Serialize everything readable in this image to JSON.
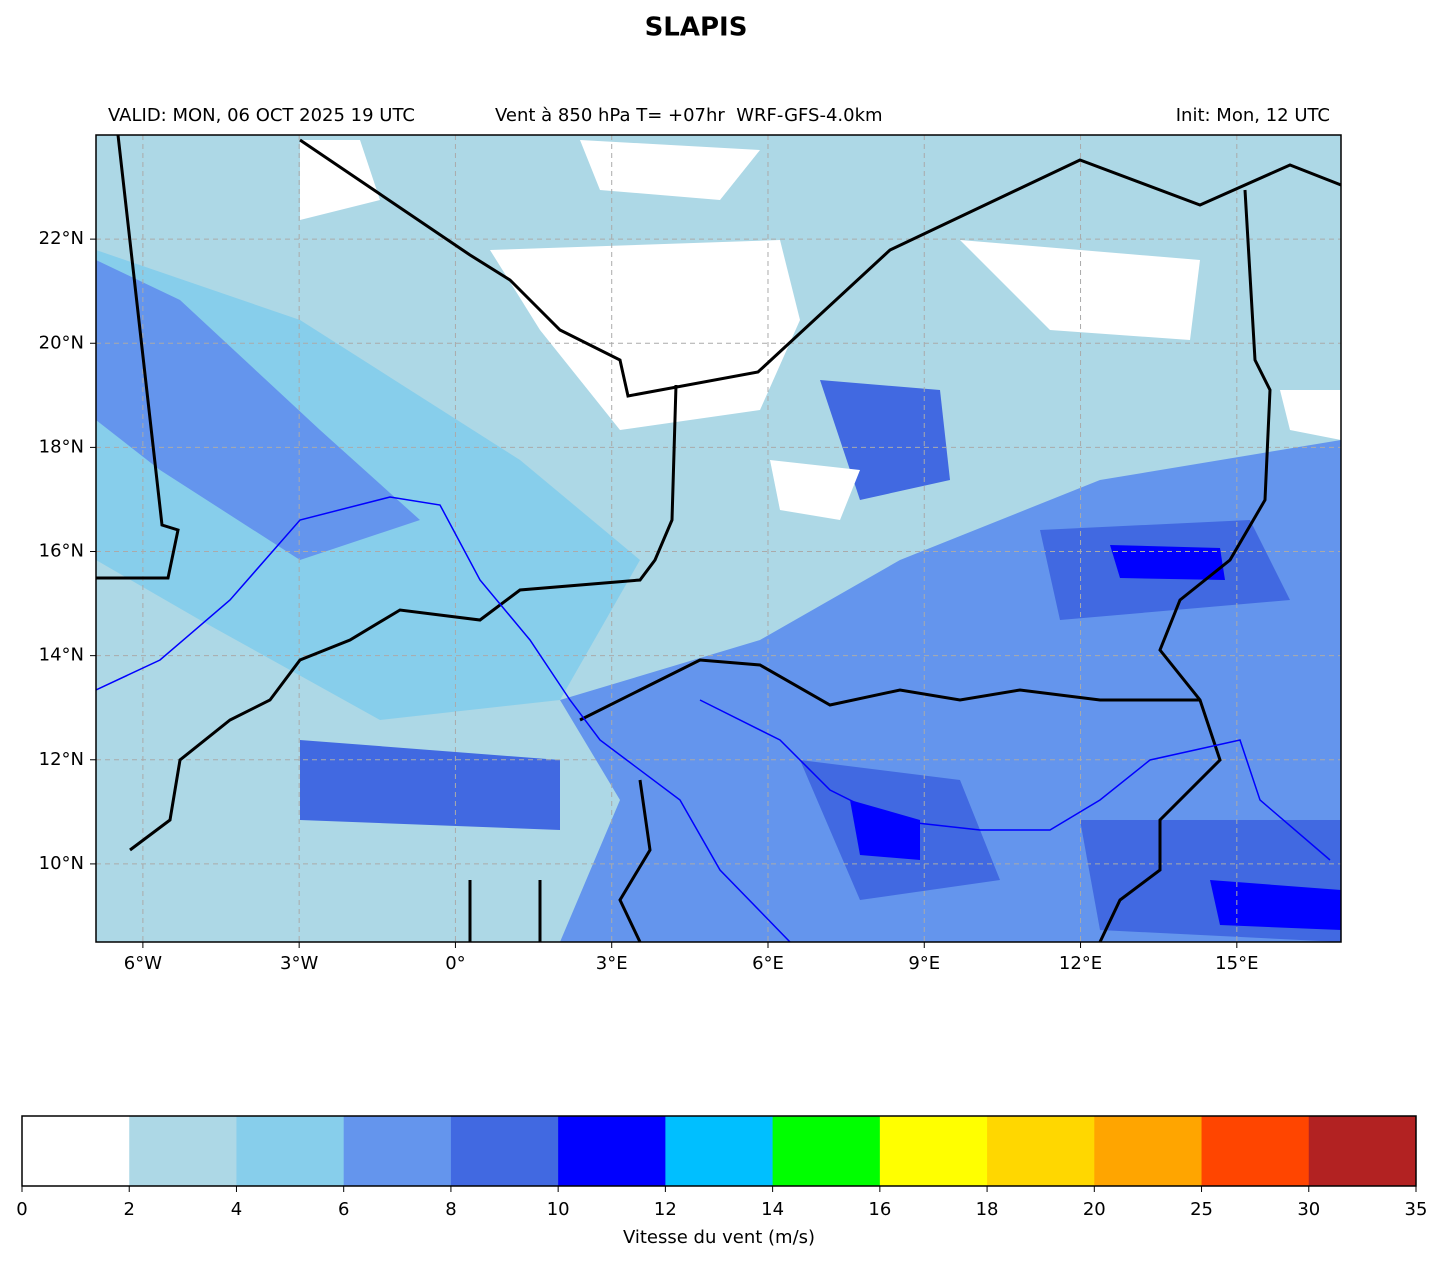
{
  "title": "SLAPIS",
  "subtitle_left": "VALID: MON, 06 OCT 2025 19 UTC",
  "subtitle_center": "Vent à 850 hPa T= +07hr  WRF-GFS-4.0km",
  "subtitle_right": "Init: Mon, 12 UTC",
  "map": {
    "xlim": [
      -6.9,
      17
    ],
    "ylim": [
      8.5,
      24
    ],
    "grid": true,
    "xticks": [
      {
        "value": -6,
        "label": "6°W"
      },
      {
        "value": -3,
        "label": "3°W"
      },
      {
        "value": 0,
        "label": "0°"
      },
      {
        "value": 3,
        "label": "3°E"
      },
      {
        "value": 6,
        "label": "6°E"
      },
      {
        "value": 9,
        "label": "9°E"
      },
      {
        "value": 12,
        "label": "12°E"
      },
      {
        "value": 15,
        "label": "15°E"
      }
    ],
    "yticks": [
      {
        "value": 10,
        "label": "10°N"
      },
      {
        "value": 12,
        "label": "12°N"
      },
      {
        "value": 14,
        "label": "14°N"
      },
      {
        "value": 16,
        "label": "16°N"
      },
      {
        "value": 18,
        "label": "18°N"
      },
      {
        "value": 20,
        "label": "20°N"
      },
      {
        "value": 22,
        "label": "22°N"
      }
    ]
  },
  "colorbar": {
    "bounds": [
      0,
      2,
      4,
      6,
      8,
      10,
      12,
      14,
      16,
      18,
      20,
      25,
      30,
      35
    ],
    "colors": [
      "#ffffff",
      "#add8e6",
      "#87ceeb",
      "#6495ed",
      "#4169e1",
      "#0000ff",
      "#00bfff",
      "#00ff00",
      "#ffff00",
      "#ffd700",
      "#ffa500",
      "#ff4500",
      "#b22222"
    ],
    "label": "Vitesse du vent (m/s)"
  }
}
